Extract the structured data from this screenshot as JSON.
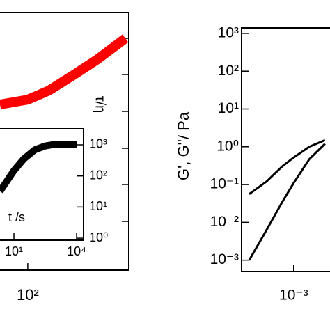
{
  "chart_data": [
    {
      "type": "line",
      "log_x": true,
      "xlim": [
        40,
        2800
      ],
      "ylim": [
        0,
        1
      ],
      "xticks": [
        {
          "value": 100,
          "label": "10²"
        }
      ],
      "y_label": "τ/η",
      "series": [
        {
          "color": "#ff0000",
          "x": [
            40,
            100,
            200,
            500,
            1000,
            2500
          ],
          "values": [
            0.643,
            0.662,
            0.697,
            0.765,
            0.819,
            0.9
          ]
        }
      ]
    },
    {
      "type": "line",
      "log_x": true,
      "log_y": true,
      "xlim": [
        2.15,
        21500
      ],
      "ylim": [
        0.86,
        3270
      ],
      "xticks": [
        {
          "value": 10,
          "label": "10¹"
        },
        {
          "value": 10000,
          "label": "10⁴"
        }
      ],
      "yticks": [
        {
          "value": 1000,
          "label": "10³"
        },
        {
          "value": 100,
          "label": "10²"
        },
        {
          "value": 10,
          "label": "10¹"
        },
        {
          "value": 1,
          "label": "10⁰"
        }
      ],
      "x_label": "t /s",
      "series": [
        {
          "color": "#000000",
          "x": [
            2.15,
            10,
            30,
            100,
            300,
            1000,
            10000
          ],
          "values": [
            32,
            148,
            355,
            690,
            910,
            1050,
            1050
          ]
        }
      ]
    },
    {
      "type": "line",
      "log_x": true,
      "log_y": true,
      "xlim": [
        0.0001,
        0.005
      ],
      "ylim": [
        0.0005,
        1400
      ],
      "xticks": [
        {
          "value": 0.001,
          "label": "10⁻³"
        }
      ],
      "yticks": [
        {
          "value": 1000,
          "label": "10³"
        },
        {
          "value": 100,
          "label": "10²"
        },
        {
          "value": 10,
          "label": "10¹"
        },
        {
          "value": 1,
          "label": "10⁰"
        },
        {
          "value": 0.1,
          "label": "10⁻¹"
        },
        {
          "value": 0.01,
          "label": "10⁻²"
        },
        {
          "value": 0.001,
          "label": "10⁻³"
        }
      ],
      "y_label": "G', G''/ Pa",
      "series": [
        {
          "color": "#000000",
          "x": [
            0.00014,
            0.0003,
            0.0006,
            0.001,
            0.002,
            0.004
          ],
          "values": [
            0.056,
            0.12,
            0.3,
            0.52,
            1.0,
            1.5
          ]
        },
        {
          "color": "#000000",
          "x": [
            0.00014,
            0.0003,
            0.0006,
            0.001,
            0.002,
            0.004
          ],
          "values": [
            0.001,
            0.0062,
            0.034,
            0.11,
            0.47,
            1.2
          ]
        }
      ]
    }
  ]
}
